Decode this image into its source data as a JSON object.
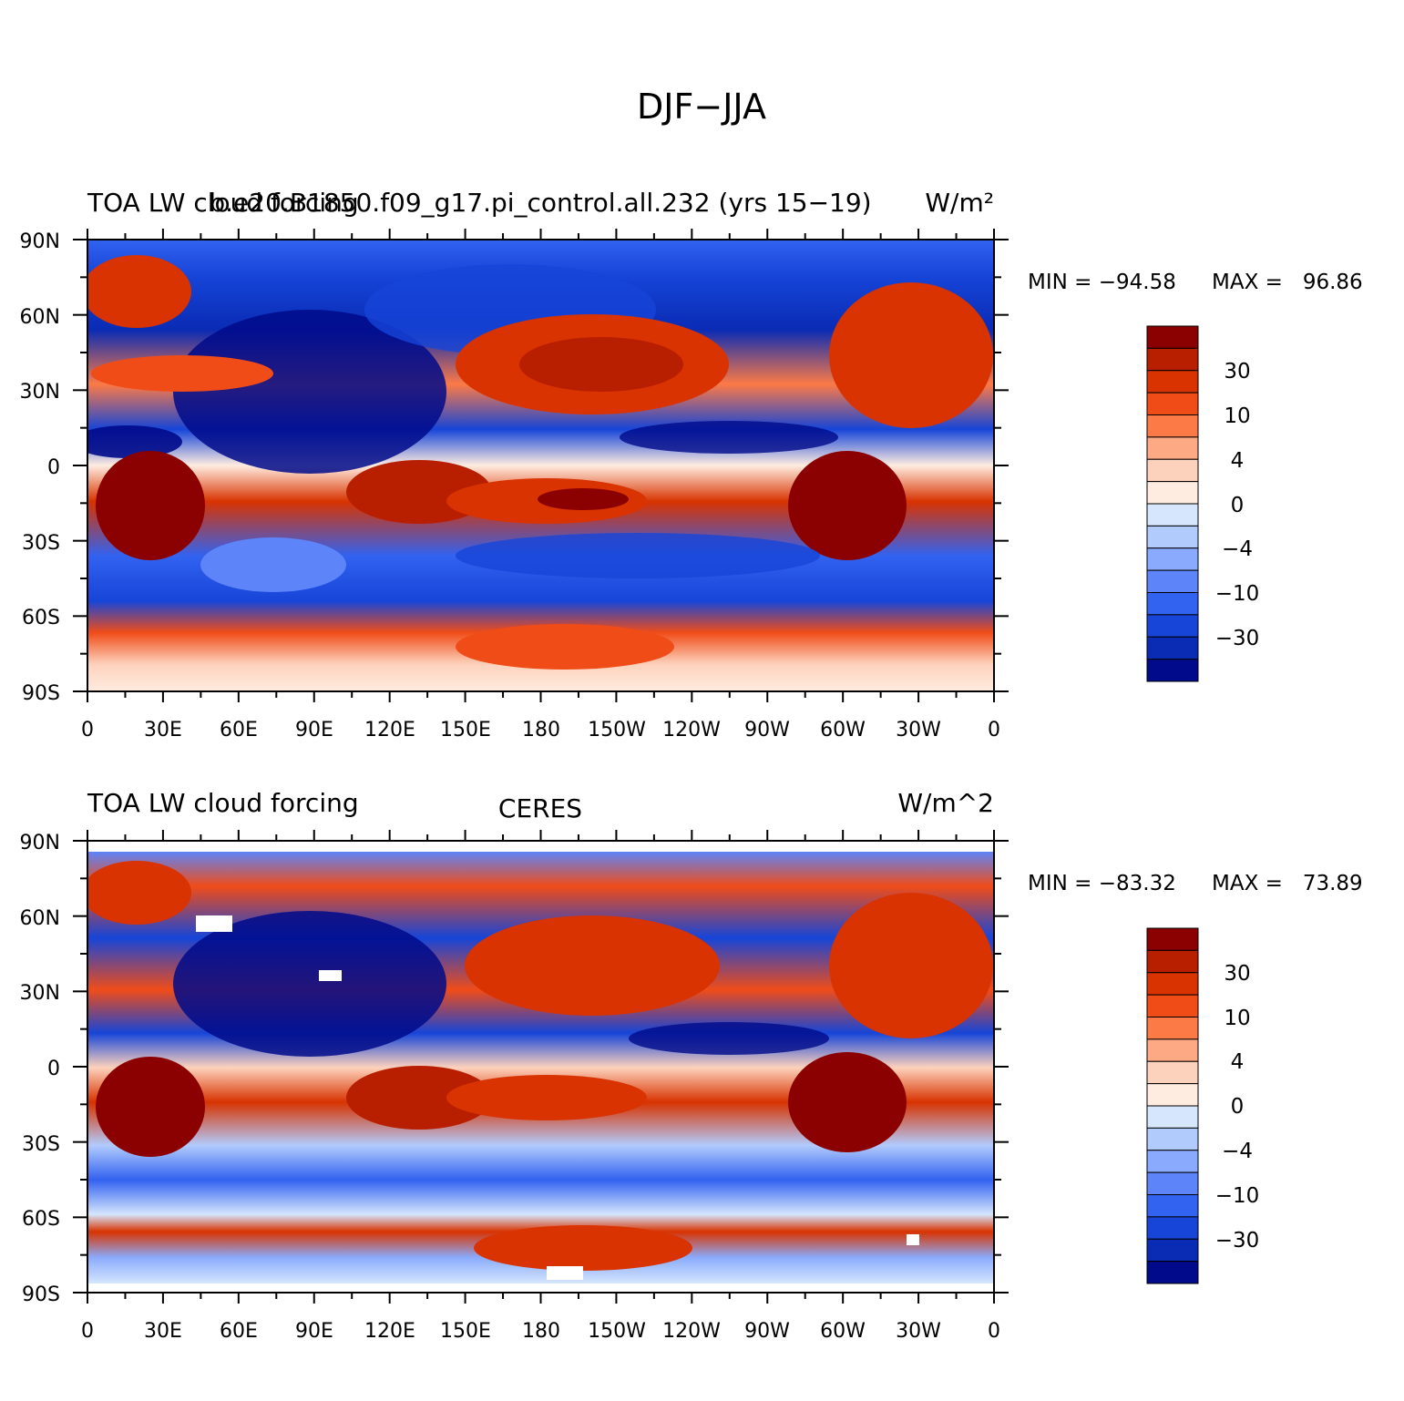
{
  "figure": {
    "title": "DJF−JJA"
  },
  "axes": {
    "lat_ticks": [
      "90N",
      "60N",
      "30N",
      "0",
      "30S",
      "60S",
      "90S"
    ],
    "lon_ticks": [
      "0",
      "30E",
      "60E",
      "90E",
      "120E",
      "150E",
      "180",
      "150W",
      "120W",
      "90W",
      "60W",
      "30W",
      "0"
    ]
  },
  "colorbar": {
    "labels": [
      "30",
      "10",
      "4",
      "0",
      "−4",
      "−10",
      "−30"
    ],
    "colors": [
      "#8b0000",
      "#b81e00",
      "#d83300",
      "#f04c18",
      "#fc7a46",
      "#fdaa84",
      "#fdd2bc",
      "#ffece0",
      "#d5e6fd",
      "#b2cbfd",
      "#8aabfd",
      "#5d84f8",
      "#3262f0",
      "#1645d8",
      "#0a2bb4",
      "#000a8a"
    ]
  },
  "panels": [
    {
      "id": "model",
      "left_title": "TOA LW cloud forcing",
      "center_title": "b.e20.B1850.f09_g17.pi_control.all.232 (yrs 15−19)",
      "right_title": "W/m²",
      "min_label": "MIN = −94.58",
      "max_label": "MAX =   96.86"
    },
    {
      "id": "obs",
      "left_title": "TOA LW cloud forcing",
      "center_title": "CERES",
      "right_title": "W/m^2",
      "min_label": "MIN = −83.32",
      "max_label": "MAX =   73.89"
    }
  ]
}
